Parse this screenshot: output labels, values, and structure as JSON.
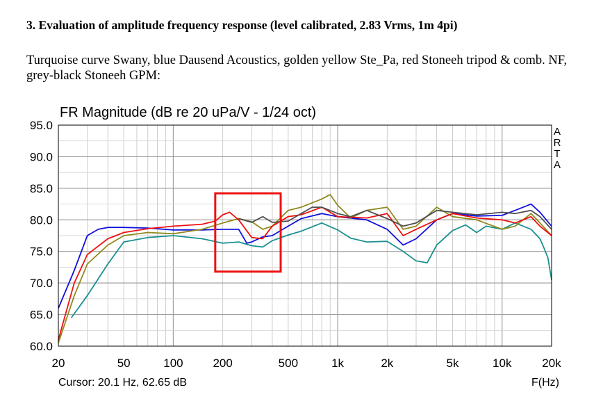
{
  "heading": "3. Evaluation of amplitude frequency response (level calibrated, 2.83 Vrms, 1m 4pi)",
  "description": "Turquoise curve Swany, blue Dausend Acoustics, golden yellow Ste_Pa, red Stoneeh tripod & comb. NF, grey-black Stoneeh GPM:",
  "chart_data": {
    "type": "line",
    "title": "FR Magnitude (dB re 20 uPa/V - 1/24 oct)",
    "xlabel": "F(Hz)",
    "ylabel": "",
    "x_scale": "log",
    "xlim": [
      20,
      20000
    ],
    "ylim": [
      60,
      95
    ],
    "grid": true,
    "x_ticks": [
      20,
      50,
      100,
      200,
      500,
      1000,
      2000,
      5000,
      10000,
      20000
    ],
    "x_tick_labels": [
      "20",
      "50",
      "100",
      "200",
      "500",
      "1k",
      "2k",
      "5k",
      "10k",
      "20k"
    ],
    "y_ticks": [
      60,
      65,
      70,
      75,
      80,
      85,
      90,
      95
    ],
    "y_tick_labels": [
      "60.0",
      "65.0",
      "70.0",
      "75.0",
      "80.0",
      "85.0",
      "90.0",
      "95.0"
    ],
    "watermark": "ARTA",
    "cursor_readout": "Cursor: 20.1 Hz, 62.65 dB",
    "highlight_box": {
      "x_range": [
        180,
        450
      ],
      "y_range": [
        71.8,
        84.2
      ],
      "color": "#ee1111"
    },
    "series": [
      {
        "color": "#1a9090",
        "points": [
          [
            24,
            64.5
          ],
          [
            30,
            68
          ],
          [
            40,
            73
          ],
          [
            50,
            76.5
          ],
          [
            70,
            77.2
          ],
          [
            100,
            77.5
          ],
          [
            150,
            77
          ],
          [
            200,
            76.3
          ],
          [
            250,
            76.5
          ],
          [
            300,
            75.9
          ],
          [
            350,
            75.7
          ],
          [
            400,
            76.7
          ],
          [
            500,
            77.6
          ],
          [
            600,
            78.2
          ],
          [
            800,
            79.5
          ],
          [
            1000,
            78.4
          ],
          [
            1200,
            77.1
          ],
          [
            1500,
            76.5
          ],
          [
            2000,
            76.6
          ],
          [
            2500,
            75
          ],
          [
            3000,
            73.5
          ],
          [
            3500,
            73.2
          ],
          [
            4000,
            76
          ],
          [
            5000,
            78.3
          ],
          [
            6000,
            79.2
          ],
          [
            7000,
            78
          ],
          [
            8000,
            79
          ],
          [
            10000,
            78.5
          ],
          [
            12000,
            79.5
          ],
          [
            15000,
            78.5
          ],
          [
            17000,
            77
          ],
          [
            18000,
            75.5
          ],
          [
            19000,
            74
          ],
          [
            20000,
            70.5
          ]
        ]
      },
      {
        "color": "#1010dd",
        "points": [
          [
            20,
            66
          ],
          [
            25,
            72
          ],
          [
            30,
            77.5
          ],
          [
            35,
            78.5
          ],
          [
            40,
            78.8
          ],
          [
            50,
            78.8
          ],
          [
            70,
            78.7
          ],
          [
            100,
            78.4
          ],
          [
            150,
            78.4
          ],
          [
            200,
            78.5
          ],
          [
            250,
            78.5
          ],
          [
            280,
            76.3
          ],
          [
            300,
            76.5
          ],
          [
            350,
            77.3
          ],
          [
            400,
            77.5
          ],
          [
            500,
            79
          ],
          [
            600,
            80.2
          ],
          [
            800,
            81
          ],
          [
            1000,
            80.5
          ],
          [
            1500,
            80
          ],
          [
            2000,
            78.5
          ],
          [
            2500,
            76
          ],
          [
            3000,
            77
          ],
          [
            4000,
            80
          ],
          [
            5000,
            81
          ],
          [
            7000,
            80.6
          ],
          [
            10000,
            80.7
          ],
          [
            12000,
            81.5
          ],
          [
            15000,
            82.5
          ],
          [
            17000,
            81.2
          ],
          [
            20000,
            79
          ]
        ]
      },
      {
        "color": "#8f8a1c",
        "points": [
          [
            20,
            60.5
          ],
          [
            25,
            68
          ],
          [
            30,
            73
          ],
          [
            40,
            76
          ],
          [
            50,
            77.5
          ],
          [
            70,
            78
          ],
          [
            100,
            77.8
          ],
          [
            150,
            78.5
          ],
          [
            200,
            79.5
          ],
          [
            250,
            80.2
          ],
          [
            300,
            79.7
          ],
          [
            350,
            78.5
          ],
          [
            400,
            79
          ],
          [
            500,
            81.5
          ],
          [
            600,
            82
          ],
          [
            700,
            82.7
          ],
          [
            800,
            83.3
          ],
          [
            900,
            84
          ],
          [
            1000,
            82.3
          ],
          [
            1200,
            80.3
          ],
          [
            1500,
            81.5
          ],
          [
            2000,
            82
          ],
          [
            2500,
            78.5
          ],
          [
            3000,
            79
          ],
          [
            4000,
            82
          ],
          [
            5000,
            80.5
          ],
          [
            7000,
            80
          ],
          [
            10000,
            78.5
          ],
          [
            12000,
            79
          ],
          [
            15000,
            81
          ],
          [
            17000,
            79.5
          ],
          [
            20000,
            77.5
          ]
        ]
      },
      {
        "color": "#ee1111",
        "points": [
          [
            20,
            61
          ],
          [
            25,
            70
          ],
          [
            30,
            74.5
          ],
          [
            40,
            77
          ],
          [
            50,
            78
          ],
          [
            70,
            78.6
          ],
          [
            100,
            79
          ],
          [
            150,
            79.3
          ],
          [
            180,
            79.8
          ],
          [
            200,
            80.8
          ],
          [
            220,
            81.2
          ],
          [
            250,
            80
          ],
          [
            300,
            77.2
          ],
          [
            350,
            77
          ],
          [
            400,
            79
          ],
          [
            500,
            80.5
          ],
          [
            600,
            80.8
          ],
          [
            800,
            82
          ],
          [
            1000,
            80.5
          ],
          [
            1500,
            80.3
          ],
          [
            2000,
            81
          ],
          [
            2500,
            77.5
          ],
          [
            3000,
            78.5
          ],
          [
            4000,
            80
          ],
          [
            5000,
            81
          ],
          [
            7000,
            80.3
          ],
          [
            10000,
            80
          ],
          [
            12000,
            79.5
          ],
          [
            15000,
            80.5
          ],
          [
            17000,
            79
          ],
          [
            20000,
            77.5
          ]
        ]
      },
      {
        "color": "#505050",
        "points": [
          [
            250,
            80.2
          ],
          [
            300,
            79.6
          ],
          [
            350,
            80.5
          ],
          [
            400,
            79.6
          ],
          [
            500,
            79.8
          ],
          [
            600,
            81
          ],
          [
            700,
            82
          ],
          [
            800,
            82
          ],
          [
            1000,
            81
          ],
          [
            1200,
            80.5
          ],
          [
            1500,
            81.5
          ],
          [
            2000,
            80.2
          ],
          [
            2500,
            79
          ],
          [
            3000,
            79.5
          ],
          [
            4000,
            81.5
          ],
          [
            5000,
            81.2
          ],
          [
            7000,
            80.8
          ],
          [
            10000,
            81.2
          ],
          [
            12000,
            81
          ],
          [
            15000,
            81.5
          ],
          [
            17000,
            80.5
          ],
          [
            20000,
            78.5
          ]
        ]
      }
    ]
  }
}
